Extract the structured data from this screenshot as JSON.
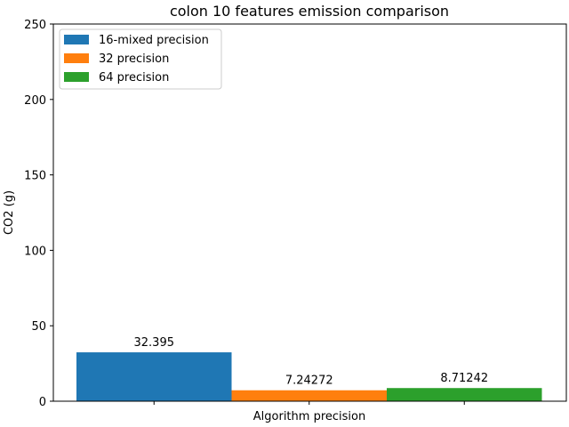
{
  "chart_data": {
    "type": "bar",
    "title": "colon 10 features emission comparison",
    "xlabel": "Algorithm precision",
    "ylabel": "CO2 (g)",
    "ylim": [
      0,
      250
    ],
    "yticks": [
      0,
      50,
      100,
      150,
      200,
      250
    ],
    "grid": false,
    "legend_position": "top-left",
    "series": [
      {
        "name": "16-mixed precision",
        "value": 32.395,
        "label": "32.395",
        "color": "#1f77b4"
      },
      {
        "name": "32 precision",
        "value": 7.24272,
        "label": "7.24272",
        "color": "#ff7f0e"
      },
      {
        "name": "64 precision",
        "value": 8.71242,
        "label": "8.71242",
        "color": "#2ca02c"
      }
    ]
  }
}
